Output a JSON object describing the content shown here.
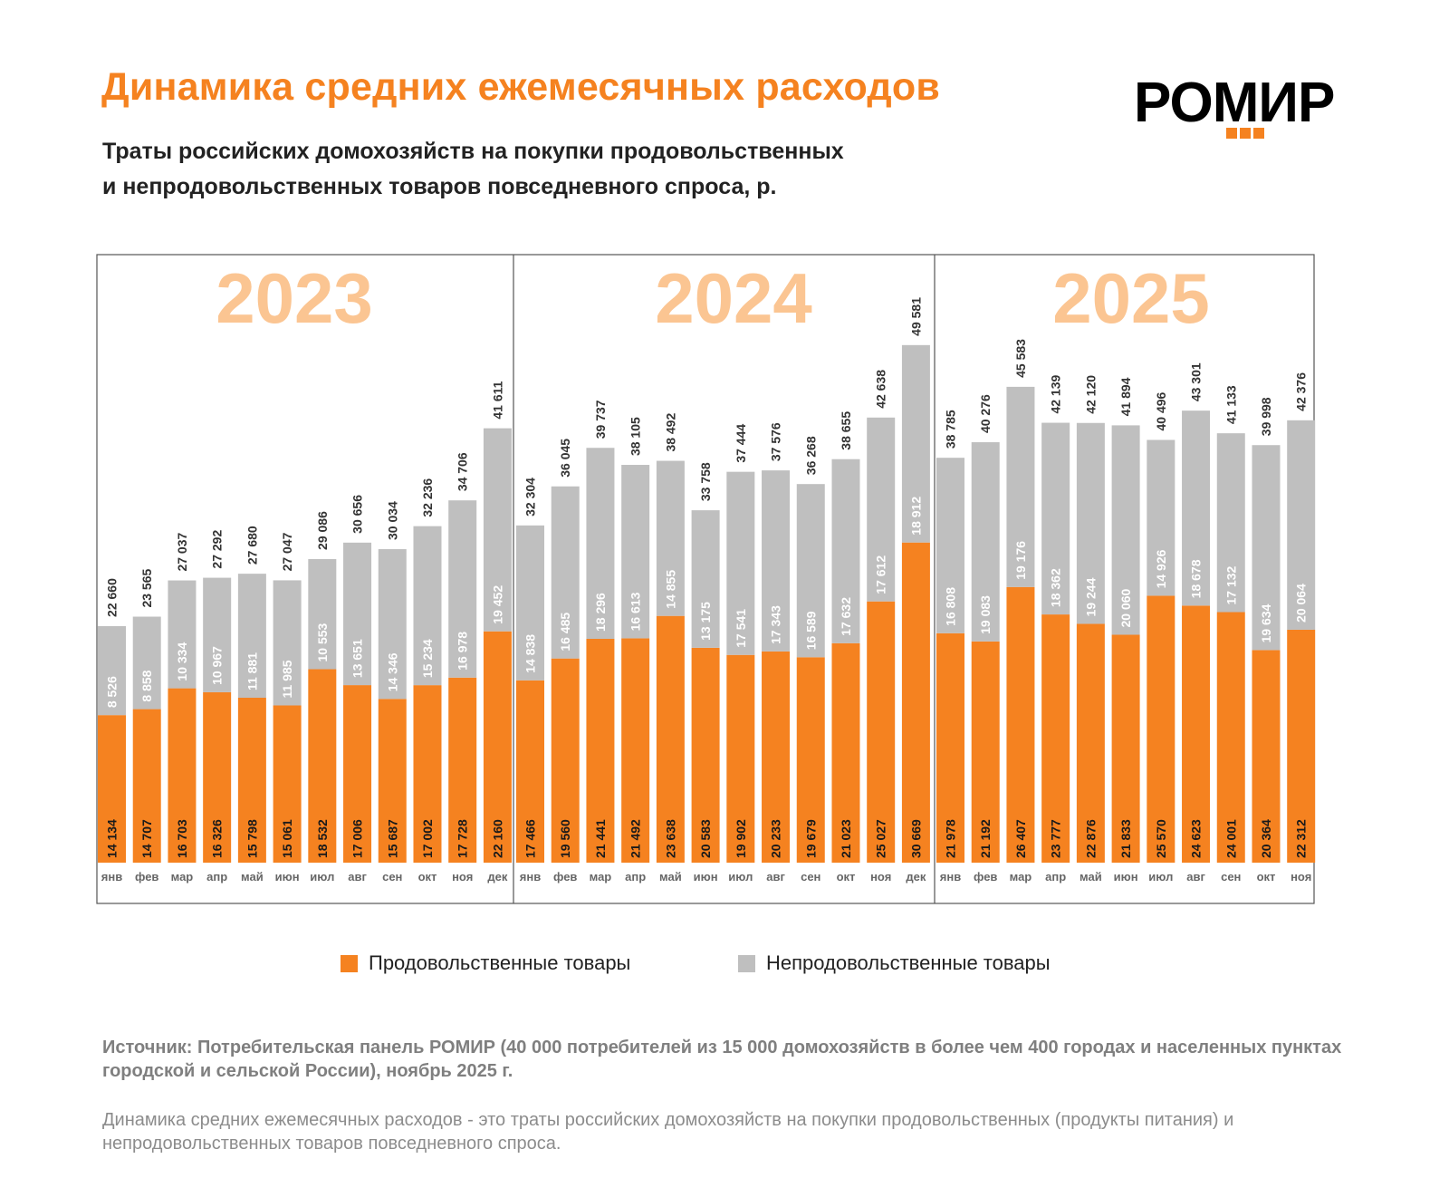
{
  "header": {
    "title": "Динамика средних ежемесячных расходов",
    "subtitle_line1": "Траты российских домохозяйств на покупки продовольственных",
    "subtitle_line2": "и непродовольственных товаров повседневного спроса, р.",
    "logo_text": "РОМИР"
  },
  "chart_data": {
    "type": "bar",
    "stacked": true,
    "title": "Динамика средних ежемесячных расходов",
    "ylabel": "р.",
    "panels": [
      {
        "year": "2023",
        "categories": [
          "янв",
          "фев",
          "мар",
          "апр",
          "май",
          "июн",
          "июл",
          "авг",
          "сен",
          "окт",
          "ноя",
          "дек"
        ],
        "food": [
          14134,
          14707,
          16703,
          16326,
          15798,
          15061,
          18532,
          17006,
          15687,
          17002,
          17728,
          22160
        ],
        "nonfood": [
          8526,
          8858,
          10334,
          10967,
          11881,
          11985,
          10553,
          13651,
          14346,
          15234,
          16978,
          19452
        ],
        "total": [
          22660,
          23565,
          27037,
          27292,
          27680,
          27047,
          29086,
          30656,
          30034,
          32236,
          34706,
          41611
        ]
      },
      {
        "year": "2024",
        "categories": [
          "янв",
          "фев",
          "мар",
          "апр",
          "май",
          "июн",
          "июл",
          "авг",
          "сен",
          "окт",
          "ноя",
          "дек"
        ],
        "food": [
          17466,
          19560,
          21441,
          21492,
          23638,
          20583,
          19902,
          20233,
          19679,
          21023,
          25027,
          30669
        ],
        "nonfood": [
          14838,
          16485,
          18296,
          16613,
          14855,
          13175,
          17541,
          17343,
          16589,
          17632,
          17612,
          18912
        ],
        "total": [
          32304,
          36045,
          39737,
          38105,
          38492,
          33758,
          37444,
          37576,
          36268,
          38655,
          42638,
          49581
        ]
      },
      {
        "year": "2025",
        "categories": [
          "янв",
          "фев",
          "мар",
          "апр",
          "май",
          "июн",
          "июл",
          "авг",
          "сен",
          "окт",
          "ноя"
        ],
        "food": [
          21978,
          21192,
          26407,
          23777,
          22876,
          21833,
          25570,
          24623,
          24001,
          20364,
          22312
        ],
        "nonfood": [
          16808,
          19083,
          19176,
          18362,
          19244,
          20060,
          14926,
          18678,
          17132,
          19634,
          20064
        ],
        "total": [
          38785,
          40276,
          45583,
          42139,
          42120,
          41894,
          40496,
          43301,
          41133,
          39998,
          42376
        ]
      }
    ],
    "ylim": [
      0,
      50000
    ],
    "series": [
      {
        "name": "Продовольственные товары",
        "key": "food",
        "color": "#f58220"
      },
      {
        "name": "Непродовольственные товары",
        "key": "nonfood",
        "color": "#bfbfbf"
      }
    ],
    "year_color": "#fbc592",
    "legend_position": "bottom"
  },
  "footer": {
    "source": "Источник: Потребительская панель РОМИР (40 000 потребителей из 15 000 домохозяйств в более чем 400 городах и населенных пунктах городской и сельской России), ноябрь 2025 г.",
    "note": "Динамика средних ежемесячных расходов - это траты российских домохозяйств на покупки продовольственных (продукты питания) и непродовольственных товаров повседневного спроса."
  }
}
